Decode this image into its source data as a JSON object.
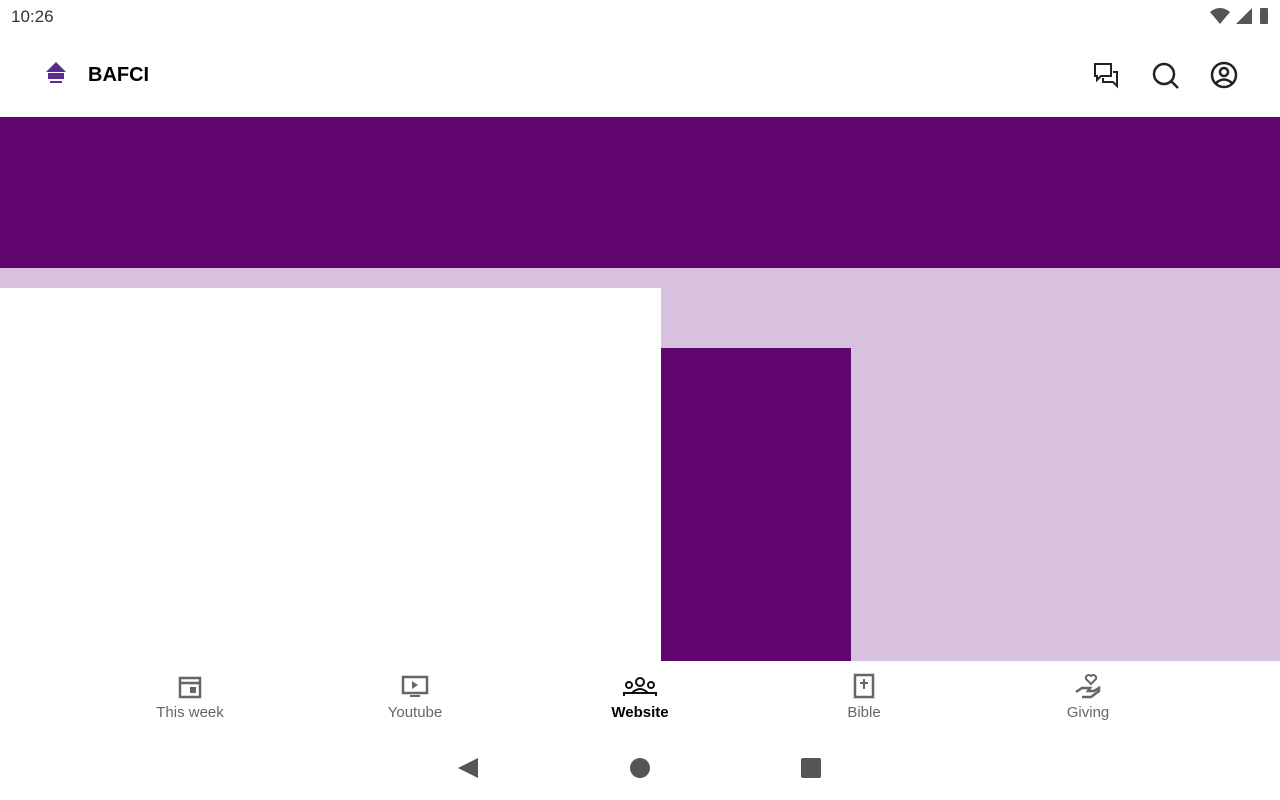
{
  "status_bar": {
    "time": "10:26"
  },
  "app_bar": {
    "title": "BAFCI"
  },
  "bottom_nav": [
    "This week",
    "Youtube",
    "Website",
    "Bible",
    "Giving"
  ]
}
